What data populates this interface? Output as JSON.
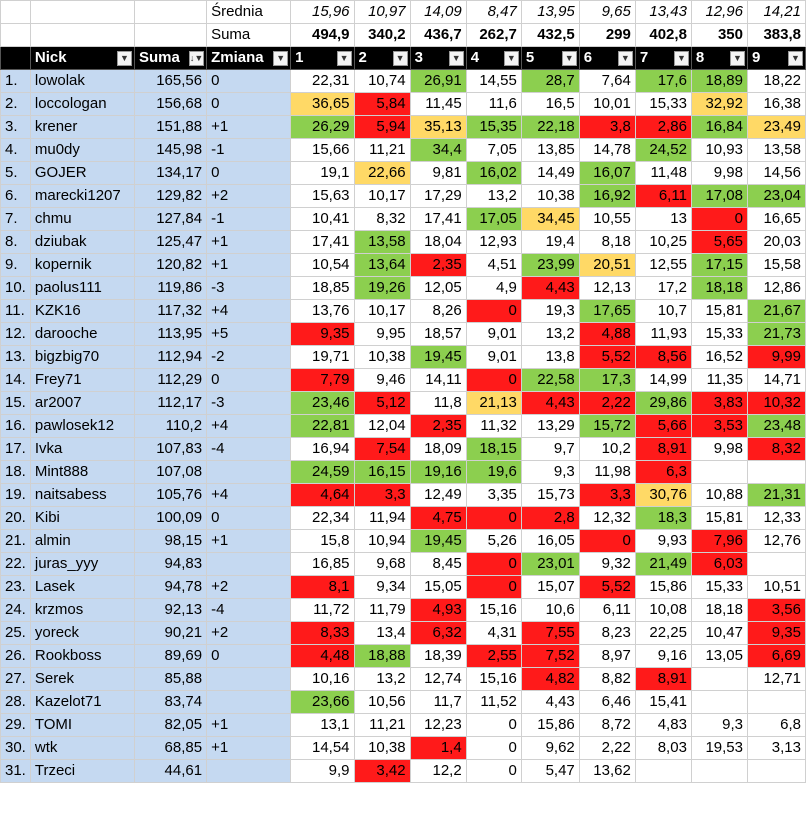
{
  "stats": {
    "srednia_label": "Średnia",
    "suma_label": "Suma",
    "srednia": [
      "15,96",
      "10,97",
      "14,09",
      "8,47",
      "13,95",
      "9,65",
      "13,43",
      "12,96",
      "14,21"
    ],
    "suma": [
      "494,9",
      "340,2",
      "436,7",
      "262,7",
      "432,5",
      "299",
      "402,8",
      "350",
      "383,8"
    ]
  },
  "header": {
    "nick": "Nick",
    "suma": "Suma",
    "zmiana": "Zmiana",
    "rounds": [
      "1",
      "2",
      "3",
      "4",
      "5",
      "6",
      "7",
      "8",
      "9"
    ]
  },
  "colors": {
    "green": "#8ccf4f",
    "red": "#ff1a1a",
    "yellow": "#ffd966",
    "blue": "#c5d9f1"
  },
  "rows": [
    {
      "rank": "1.",
      "nick": "lowolak",
      "suma": "165,56",
      "zmiana": "0",
      "s": [
        "22,31",
        "10,74",
        "26,91",
        "14,55",
        "28,7",
        "7,64",
        "17,6",
        "18,89",
        "18,22"
      ],
      "c": [
        "",
        "",
        "g",
        "",
        "g",
        "",
        "g",
        "g",
        ""
      ]
    },
    {
      "rank": "2.",
      "nick": "loccologan",
      "suma": "156,68",
      "zmiana": "0",
      "s": [
        "36,65",
        "5,84",
        "11,45",
        "11,6",
        "16,5",
        "10,01",
        "15,33",
        "32,92",
        "16,38"
      ],
      "c": [
        "y",
        "r",
        "",
        "",
        "",
        "",
        "",
        "y",
        ""
      ]
    },
    {
      "rank": "3.",
      "nick": "krener",
      "suma": "151,88",
      "zmiana": "+1",
      "s": [
        "26,29",
        "5,94",
        "35,13",
        "15,35",
        "22,18",
        "3,8",
        "2,86",
        "16,84",
        "23,49"
      ],
      "c": [
        "g",
        "r",
        "y",
        "g",
        "g",
        "r",
        "r",
        "g",
        "y"
      ]
    },
    {
      "rank": "4.",
      "nick": "mu0dy",
      "suma": "145,98",
      "zmiana": "-1",
      "s": [
        "15,66",
        "11,21",
        "34,4",
        "7,05",
        "13,85",
        "14,78",
        "24,52",
        "10,93",
        "13,58"
      ],
      "c": [
        "",
        "",
        "g",
        "",
        "",
        "",
        "g",
        "",
        ""
      ]
    },
    {
      "rank": "5.",
      "nick": "GOJER",
      "suma": "134,17",
      "zmiana": "0",
      "s": [
        "19,1",
        "22,66",
        "9,81",
        "16,02",
        "14,49",
        "16,07",
        "11,48",
        "9,98",
        "14,56"
      ],
      "c": [
        "",
        "y",
        "",
        "g",
        "",
        "g",
        "",
        "",
        ""
      ]
    },
    {
      "rank": "6.",
      "nick": "marecki1207",
      "suma": "129,82",
      "zmiana": "+2",
      "s": [
        "15,63",
        "10,17",
        "17,29",
        "13,2",
        "10,38",
        "16,92",
        "6,11",
        "17,08",
        "23,04"
      ],
      "c": [
        "",
        "",
        "",
        "",
        "",
        "g",
        "r",
        "g",
        "g"
      ]
    },
    {
      "rank": "7.",
      "nick": "chmu",
      "suma": "127,84",
      "zmiana": "-1",
      "s": [
        "10,41",
        "8,32",
        "17,41",
        "17,05",
        "34,45",
        "10,55",
        "13",
        "0",
        "16,65"
      ],
      "c": [
        "",
        "",
        "",
        "g",
        "y",
        "",
        "",
        "r",
        ""
      ]
    },
    {
      "rank": "8.",
      "nick": "dziubak",
      "suma": "125,47",
      "zmiana": "+1",
      "s": [
        "17,41",
        "13,58",
        "18,04",
        "12,93",
        "19,4",
        "8,18",
        "10,25",
        "5,65",
        "20,03"
      ],
      "c": [
        "",
        "g",
        "",
        "",
        "",
        "",
        "",
        "r",
        ""
      ]
    },
    {
      "rank": "9.",
      "nick": "kopernik",
      "suma": "120,82",
      "zmiana": "+1",
      "s": [
        "10,54",
        "13,64",
        "2,35",
        "4,51",
        "23,99",
        "20,51",
        "12,55",
        "17,15",
        "15,58"
      ],
      "c": [
        "",
        "g",
        "r",
        "",
        "g",
        "y",
        "",
        "g",
        ""
      ]
    },
    {
      "rank": "10.",
      "nick": "paolus111",
      "suma": "119,86",
      "zmiana": "-3",
      "s": [
        "18,85",
        "19,26",
        "12,05",
        "4,9",
        "4,43",
        "12,13",
        "17,2",
        "18,18",
        "12,86"
      ],
      "c": [
        "",
        "g",
        "",
        "",
        "r",
        "",
        "",
        "g",
        ""
      ]
    },
    {
      "rank": "11.",
      "nick": "KZK16",
      "suma": "117,32",
      "zmiana": "+4",
      "s": [
        "13,76",
        "10,17",
        "8,26",
        "0",
        "19,3",
        "17,65",
        "10,7",
        "15,81",
        "21,67"
      ],
      "c": [
        "",
        "",
        "",
        "r",
        "",
        "g",
        "",
        "",
        "g"
      ]
    },
    {
      "rank": "12.",
      "nick": "darooche",
      "suma": "113,95",
      "zmiana": "+5",
      "s": [
        "9,35",
        "9,95",
        "18,57",
        "9,01",
        "13,2",
        "4,88",
        "11,93",
        "15,33",
        "21,73"
      ],
      "c": [
        "r",
        "",
        "",
        "",
        "",
        "r",
        "",
        "",
        "g"
      ]
    },
    {
      "rank": "13.",
      "nick": "bigzbig70",
      "suma": "112,94",
      "zmiana": "-2",
      "s": [
        "19,71",
        "10,38",
        "19,45",
        "9,01",
        "13,8",
        "5,52",
        "8,56",
        "16,52",
        "9,99"
      ],
      "c": [
        "",
        "",
        "g",
        "",
        "",
        "r",
        "r",
        "",
        "r"
      ]
    },
    {
      "rank": "14.",
      "nick": "Frey71",
      "suma": "112,29",
      "zmiana": "0",
      "s": [
        "7,79",
        "9,46",
        "14,11",
        "0",
        "22,58",
        "17,3",
        "14,99",
        "11,35",
        "14,71"
      ],
      "c": [
        "r",
        "",
        "",
        "r",
        "g",
        "g",
        "",
        "",
        ""
      ]
    },
    {
      "rank": "15.",
      "nick": "ar2007",
      "suma": "112,17",
      "zmiana": "-3",
      "s": [
        "23,46",
        "5,12",
        "11,8",
        "21,13",
        "4,43",
        "2,22",
        "29,86",
        "3,83",
        "10,32"
      ],
      "c": [
        "g",
        "r",
        "",
        "y",
        "r",
        "r",
        "g",
        "r",
        "r"
      ]
    },
    {
      "rank": "16.",
      "nick": "pawlosek12",
      "suma": "110,2",
      "zmiana": "+4",
      "s": [
        "22,81",
        "12,04",
        "2,35",
        "11,32",
        "13,29",
        "15,72",
        "5,66",
        "3,53",
        "23,48"
      ],
      "c": [
        "g",
        "",
        "r",
        "",
        "",
        "g",
        "r",
        "r",
        "g"
      ]
    },
    {
      "rank": "17.",
      "nick": "Ivka",
      "suma": "107,83",
      "zmiana": "-4",
      "s": [
        "16,94",
        "7,54",
        "18,09",
        "18,15",
        "9,7",
        "10,2",
        "8,91",
        "9,98",
        "8,32"
      ],
      "c": [
        "",
        "r",
        "",
        "g",
        "",
        "",
        "r",
        "",
        "r"
      ]
    },
    {
      "rank": "18.",
      "nick": "Mint888",
      "suma": "107,08",
      "zmiana": "",
      "s": [
        "24,59",
        "16,15",
        "19,16",
        "19,6",
        "9,3",
        "11,98",
        "6,3",
        "",
        ""
      ],
      "c": [
        "g",
        "g",
        "g",
        "g",
        "",
        "",
        "r",
        "",
        ""
      ]
    },
    {
      "rank": "19.",
      "nick": "naitsabess",
      "suma": "105,76",
      "zmiana": "+4",
      "s": [
        "4,64",
        "3,3",
        "12,49",
        "3,35",
        "15,73",
        "3,3",
        "30,76",
        "10,88",
        "21,31"
      ],
      "c": [
        "r",
        "r",
        "",
        "",
        "",
        "r",
        "y",
        "",
        "g"
      ]
    },
    {
      "rank": "20.",
      "nick": "Kibi",
      "suma": "100,09",
      "zmiana": "0",
      "s": [
        "22,34",
        "11,94",
        "4,75",
        "0",
        "2,8",
        "12,32",
        "18,3",
        "15,81",
        "12,33"
      ],
      "c": [
        "",
        "",
        "r",
        "r",
        "r",
        "",
        "g",
        "",
        ""
      ]
    },
    {
      "rank": "21.",
      "nick": "almin",
      "suma": "98,15",
      "zmiana": "+1",
      "s": [
        "15,8",
        "10,94",
        "19,45",
        "5,26",
        "16,05",
        "0",
        "9,93",
        "7,96",
        "12,76"
      ],
      "c": [
        "",
        "",
        "g",
        "",
        "",
        "r",
        "",
        "r",
        ""
      ]
    },
    {
      "rank": "22.",
      "nick": "juras_yyy",
      "suma": "94,83",
      "zmiana": "",
      "s": [
        "16,85",
        "9,68",
        "8,45",
        "0",
        "23,01",
        "9,32",
        "21,49",
        "6,03",
        ""
      ],
      "c": [
        "",
        "",
        "",
        "r",
        "g",
        "",
        "g",
        "r",
        ""
      ]
    },
    {
      "rank": "23.",
      "nick": "Lasek",
      "suma": "94,78",
      "zmiana": "+2",
      "s": [
        "8,1",
        "9,34",
        "15,05",
        "0",
        "15,07",
        "5,52",
        "15,86",
        "15,33",
        "10,51"
      ],
      "c": [
        "r",
        "",
        "",
        "r",
        "",
        "r",
        "",
        "",
        ""
      ]
    },
    {
      "rank": "24.",
      "nick": "krzmos",
      "suma": "92,13",
      "zmiana": "-4",
      "s": [
        "11,72",
        "11,79",
        "4,93",
        "15,16",
        "10,6",
        "6,11",
        "10,08",
        "18,18",
        "3,56"
      ],
      "c": [
        "",
        "",
        "r",
        "",
        "",
        "",
        "",
        "",
        "r"
      ]
    },
    {
      "rank": "25.",
      "nick": "yoreck",
      "suma": "90,21",
      "zmiana": "+2",
      "s": [
        "8,33",
        "13,4",
        "6,32",
        "4,31",
        "7,55",
        "8,23",
        "22,25",
        "10,47",
        "9,35"
      ],
      "c": [
        "r",
        "",
        "r",
        "",
        "r",
        "",
        "",
        "",
        "r"
      ]
    },
    {
      "rank": "26.",
      "nick": "Rookboss",
      "suma": "89,69",
      "zmiana": "0",
      "s": [
        "4,48",
        "18,88",
        "18,39",
        "2,55",
        "7,52",
        "8,97",
        "9,16",
        "13,05",
        "6,69"
      ],
      "c": [
        "r",
        "g",
        "",
        "r",
        "r",
        "",
        "",
        "",
        "r"
      ]
    },
    {
      "rank": "27.",
      "nick": "Serek",
      "suma": "85,88",
      "zmiana": "",
      "s": [
        "10,16",
        "13,2",
        "12,74",
        "15,16",
        "4,82",
        "8,82",
        "8,91",
        "",
        "12,71"
      ],
      "c": [
        "",
        "",
        "",
        "",
        "r",
        "",
        "r",
        "",
        ""
      ]
    },
    {
      "rank": "28.",
      "nick": "Kazelot71",
      "suma": "83,74",
      "zmiana": "",
      "s": [
        "23,66",
        "10,56",
        "11,7",
        "11,52",
        "4,43",
        "6,46",
        "15,41",
        "",
        ""
      ],
      "c": [
        "g",
        "",
        "",
        "",
        "",
        "",
        "",
        "",
        ""
      ]
    },
    {
      "rank": "29.",
      "nick": "TOMI",
      "suma": "82,05",
      "zmiana": "+1",
      "s": [
        "13,1",
        "11,21",
        "12,23",
        "0",
        "15,86",
        "8,72",
        "4,83",
        "9,3",
        "6,8"
      ],
      "c": [
        "",
        "",
        "",
        "",
        "",
        "",
        "",
        "",
        ""
      ]
    },
    {
      "rank": "30.",
      "nick": "wtk",
      "suma": "68,85",
      "zmiana": "+1",
      "s": [
        "14,54",
        "10,38",
        "1,4",
        "0",
        "9,62",
        "2,22",
        "8,03",
        "19,53",
        "3,13"
      ],
      "c": [
        "",
        "",
        "r",
        "",
        "",
        "",
        "",
        "",
        ""
      ]
    },
    {
      "rank": "31.",
      "nick": "Trzeci",
      "suma": "44,61",
      "zmiana": "",
      "s": [
        "9,9",
        "3,42",
        "12,2",
        "0",
        "5,47",
        "13,62",
        "",
        "",
        ""
      ],
      "c": [
        "",
        "r",
        "",
        "",
        "",
        "",
        "",
        "",
        ""
      ]
    }
  ]
}
